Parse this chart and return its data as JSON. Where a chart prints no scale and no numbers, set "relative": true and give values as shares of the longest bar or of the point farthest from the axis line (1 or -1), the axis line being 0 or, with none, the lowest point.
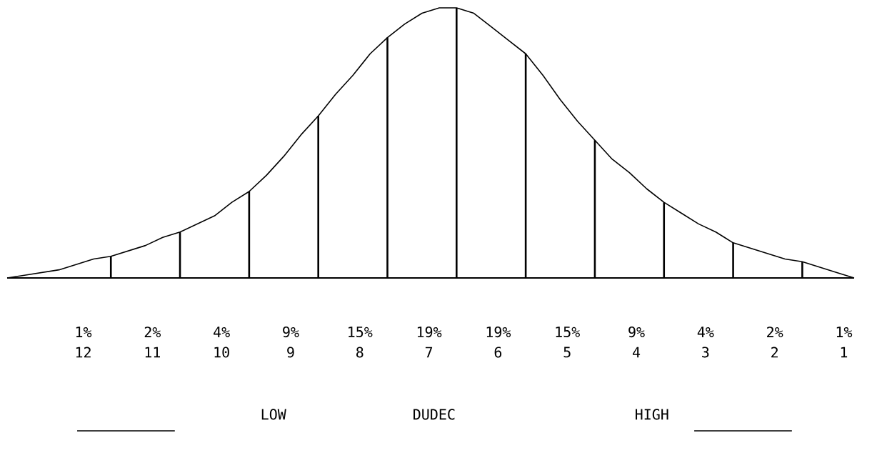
{
  "chart_data": [
    {
      "type": "line",
      "relative": true,
      "categories": [
        null,
        null,
        null,
        null,
        null,
        null,
        null,
        null,
        null,
        null,
        null,
        null,
        null,
        null,
        null,
        null,
        null,
        null,
        null,
        null,
        null,
        null,
        null,
        null,
        null,
        null,
        null,
        null,
        null,
        null,
        null,
        null,
        null,
        null,
        null,
        null,
        null,
        null,
        null,
        null,
        null,
        null,
        null,
        null,
        null,
        null,
        null,
        null,
        null,
        null
      ],
      "color": "#000000",
      "values": [
        0,
        0.01,
        0.02,
        0.03,
        0.05,
        0.07,
        0.08,
        0.1,
        0.12,
        0.15,
        0.17,
        0.2,
        0.23,
        0.28,
        0.32,
        0.38,
        0.45,
        0.53,
        0.6,
        0.68,
        0.75,
        0.83,
        0.89,
        0.94,
        0.98,
        1.0,
        1.0,
        0.98,
        0.93,
        0.88,
        0.83,
        0.75,
        0.66,
        0.58,
        0.51,
        0.44,
        0.39,
        0.33,
        0.28,
        0.24,
        0.2,
        0.17,
        0.13,
        0.11,
        0.09,
        0.07,
        0.06,
        0.04,
        0.02,
        0
      ],
      "annotations": [
        "1%",
        "2%",
        "4%",
        "9%",
        "15%",
        "19%",
        "19%",
        "15%",
        "9%",
        "4%",
        "2%",
        "1%",
        "12",
        "11",
        "10",
        "9",
        "8",
        "7",
        "6",
        "5",
        "4",
        "3",
        "2",
        "1",
        "LOW",
        "DUDEC",
        "HIGH"
      ]
    },
    {
      "type": "bar",
      "relative": true,
      "categories": [
        null,
        null,
        null,
        null,
        null,
        null,
        null,
        null,
        null,
        null,
        null
      ],
      "color": "#000000",
      "values": [
        0.08,
        0.17,
        0.32,
        0.6,
        0.89,
        1.0,
        0.83,
        0.51,
        0.28,
        0.13,
        0.06
      ]
    }
  ]
}
